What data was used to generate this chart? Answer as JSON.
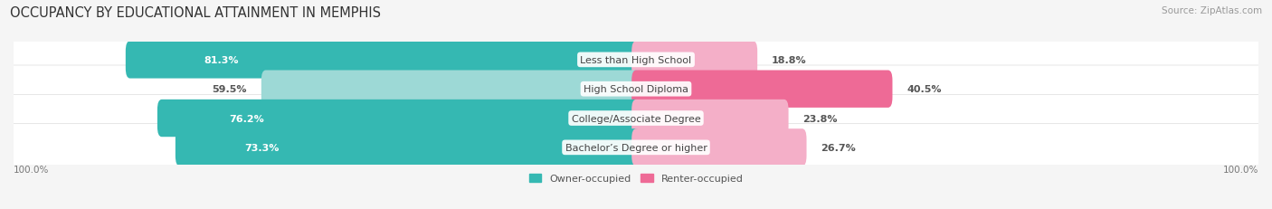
{
  "title": "OCCUPANCY BY EDUCATIONAL ATTAINMENT IN MEMPHIS",
  "source": "Source: ZipAtlas.com",
  "categories": [
    "Less than High School",
    "High School Diploma",
    "College/Associate Degree",
    "Bachelor’s Degree or higher"
  ],
  "owner_values": [
    81.3,
    59.5,
    76.2,
    73.3
  ],
  "renter_values": [
    18.8,
    40.5,
    23.8,
    26.7
  ],
  "owner_color_dark": "#35b8b2",
  "owner_color_light": "#9dd9d6",
  "renter_color_dark": "#ee6a96",
  "renter_color_light": "#f4afc8",
  "bar_bg_color": "#efefef",
  "background_color": "#f5f5f5",
  "legend_owner": "Owner-occupied",
  "legend_renter": "Renter-occupied",
  "axis_label_left": "100.0%",
  "axis_label_right": "100.0%",
  "title_fontsize": 10.5,
  "source_fontsize": 7.5,
  "label_fontsize": 8,
  "cat_fontsize": 8
}
